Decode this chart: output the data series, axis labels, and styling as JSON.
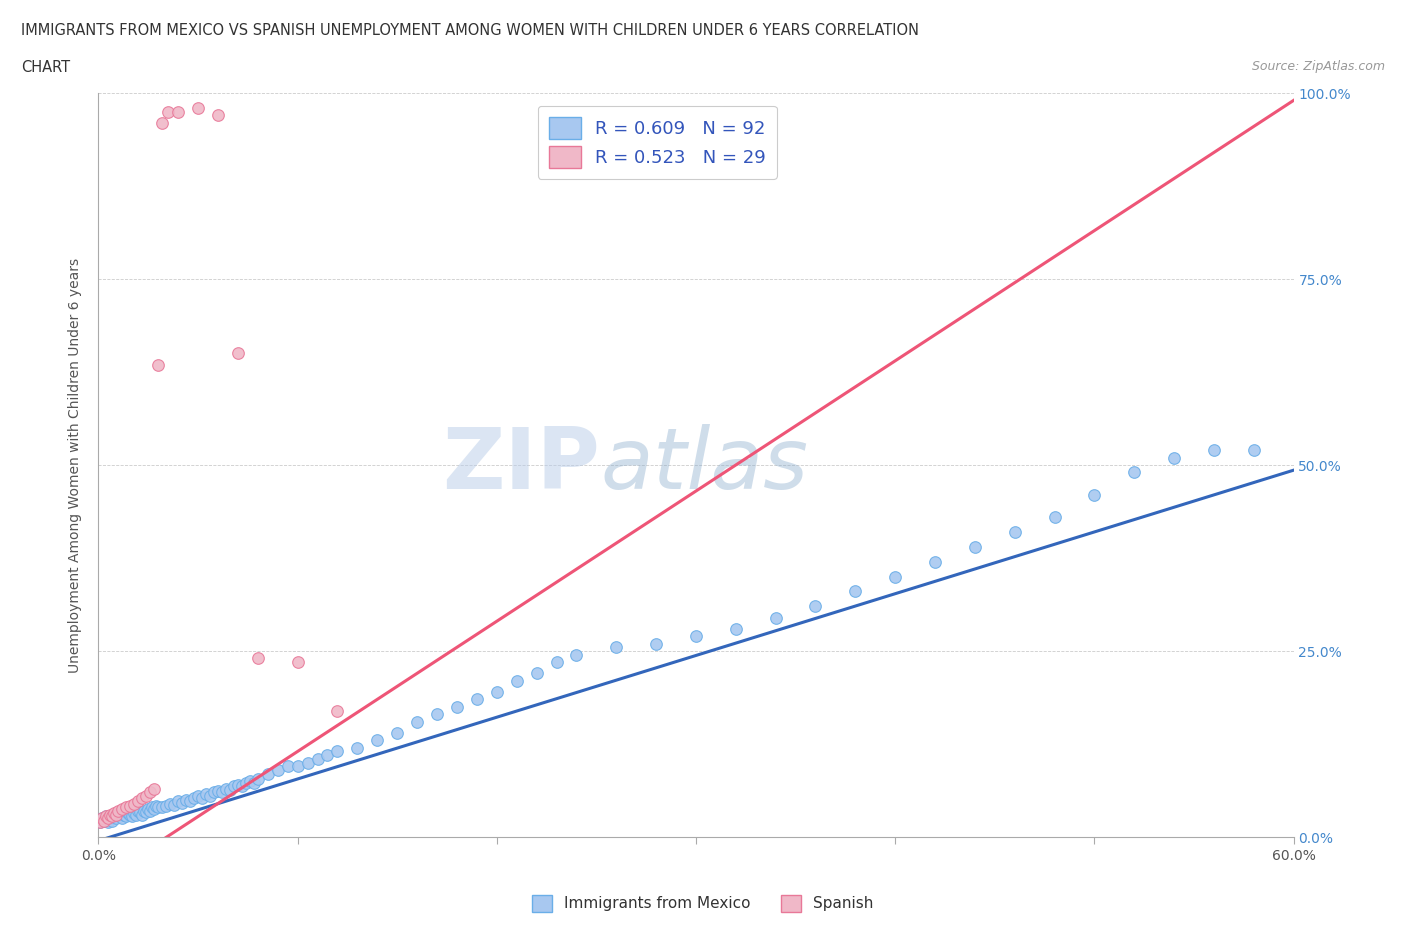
{
  "title_line1": "IMMIGRANTS FROM MEXICO VS SPANISH UNEMPLOYMENT AMONG WOMEN WITH CHILDREN UNDER 6 YEARS CORRELATION",
  "title_line2": "CHART",
  "source": "Source: ZipAtlas.com",
  "ylabel": "Unemployment Among Women with Children Under 6 years",
  "xlim": [
    0.0,
    0.6
  ],
  "ylim": [
    0.0,
    1.0
  ],
  "xticklabels": [
    "0.0%",
    "",
    "",
    "",
    "",
    "",
    "60.0%"
  ],
  "yticks": [
    0.0,
    0.25,
    0.5,
    0.75,
    1.0
  ],
  "yticklabels": [
    "0.0%",
    "25.0%",
    "50.0%",
    "75.0%",
    "100.0%"
  ],
  "blue_color": "#a8c8f0",
  "blue_edge": "#6aaee8",
  "pink_color": "#f0b8c8",
  "pink_edge": "#e87898",
  "blue_trend_color": "#3366bb",
  "pink_trend_color": "#ee5577",
  "legend_blue_label": "R = 0.609   N = 92",
  "legend_pink_label": "R = 0.523   N = 29",
  "legend_text_color": "#3355bb",
  "watermark_zip": "ZIP",
  "watermark_atlas": "atlas",
  "blue_scatter_x": [
    0.001,
    0.002,
    0.003,
    0.004,
    0.005,
    0.006,
    0.007,
    0.008,
    0.009,
    0.01,
    0.011,
    0.012,
    0.013,
    0.014,
    0.015,
    0.016,
    0.017,
    0.018,
    0.019,
    0.02,
    0.021,
    0.022,
    0.023,
    0.024,
    0.025,
    0.026,
    0.027,
    0.028,
    0.029,
    0.03,
    0.032,
    0.034,
    0.036,
    0.038,
    0.04,
    0.042,
    0.044,
    0.046,
    0.048,
    0.05,
    0.052,
    0.054,
    0.056,
    0.058,
    0.06,
    0.062,
    0.064,
    0.066,
    0.068,
    0.07,
    0.072,
    0.074,
    0.076,
    0.078,
    0.08,
    0.085,
    0.09,
    0.095,
    0.1,
    0.105,
    0.11,
    0.115,
    0.12,
    0.13,
    0.14,
    0.15,
    0.16,
    0.17,
    0.18,
    0.19,
    0.2,
    0.21,
    0.22,
    0.23,
    0.24,
    0.26,
    0.28,
    0.3,
    0.32,
    0.34,
    0.36,
    0.38,
    0.4,
    0.42,
    0.44,
    0.46,
    0.48,
    0.5,
    0.52,
    0.54,
    0.56,
    0.58
  ],
  "blue_scatter_y": [
    0.02,
    0.025,
    0.022,
    0.028,
    0.02,
    0.025,
    0.022,
    0.028,
    0.025,
    0.03,
    0.028,
    0.025,
    0.03,
    0.028,
    0.032,
    0.03,
    0.028,
    0.032,
    0.03,
    0.035,
    0.033,
    0.03,
    0.035,
    0.033,
    0.038,
    0.035,
    0.04,
    0.038,
    0.042,
    0.04,
    0.04,
    0.042,
    0.045,
    0.043,
    0.048,
    0.046,
    0.05,
    0.048,
    0.052,
    0.055,
    0.053,
    0.058,
    0.055,
    0.06,
    0.062,
    0.06,
    0.065,
    0.063,
    0.068,
    0.07,
    0.068,
    0.072,
    0.075,
    0.073,
    0.078,
    0.085,
    0.09,
    0.095,
    0.095,
    0.1,
    0.105,
    0.11,
    0.115,
    0.12,
    0.13,
    0.14,
    0.155,
    0.165,
    0.175,
    0.185,
    0.195,
    0.21,
    0.22,
    0.235,
    0.245,
    0.255,
    0.26,
    0.27,
    0.28,
    0.295,
    0.31,
    0.33,
    0.35,
    0.37,
    0.39,
    0.41,
    0.43,
    0.46,
    0.49,
    0.51,
    0.52,
    0.52
  ],
  "pink_scatter_x": [
    0.001,
    0.002,
    0.003,
    0.004,
    0.005,
    0.006,
    0.007,
    0.008,
    0.009,
    0.01,
    0.012,
    0.014,
    0.016,
    0.018,
    0.02,
    0.022,
    0.024,
    0.026,
    0.028,
    0.03,
    0.032,
    0.035,
    0.04,
    0.05,
    0.06,
    0.07,
    0.08,
    0.1,
    0.12
  ],
  "pink_scatter_y": [
    0.02,
    0.025,
    0.022,
    0.028,
    0.025,
    0.03,
    0.028,
    0.032,
    0.03,
    0.035,
    0.038,
    0.04,
    0.042,
    0.045,
    0.048,
    0.052,
    0.055,
    0.06,
    0.065,
    0.635,
    0.96,
    0.975,
    0.975,
    0.98,
    0.97,
    0.65,
    0.24,
    0.235,
    0.17
  ]
}
